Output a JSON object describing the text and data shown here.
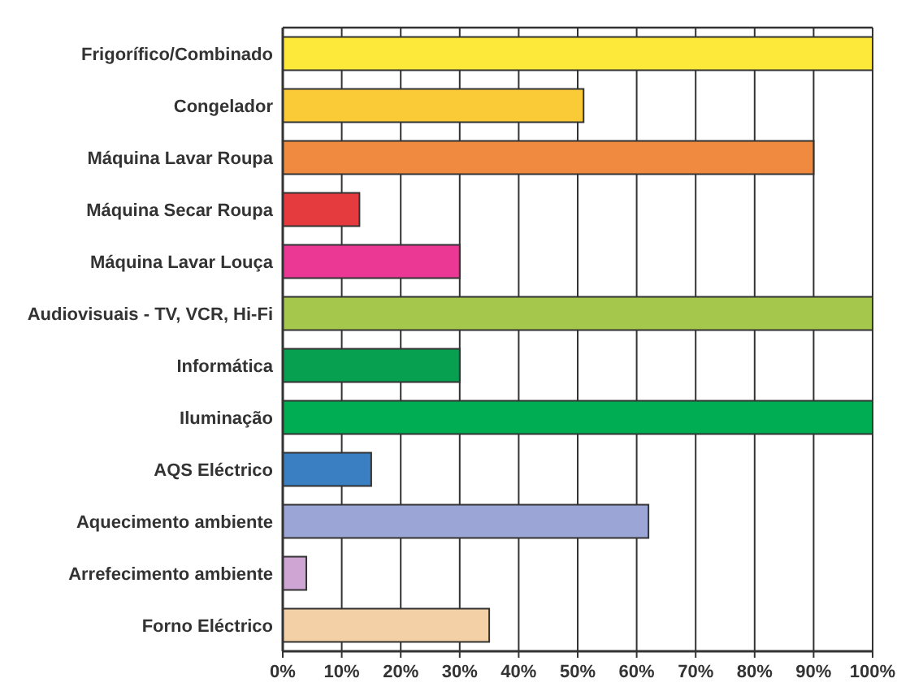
{
  "chart_data": {
    "type": "bar",
    "orientation": "horizontal",
    "categories": [
      "Frigorífico/Combinado",
      "Congelador",
      "Máquina Lavar Roupa",
      "Máquina Secar Roupa",
      "Máquina Lavar Louça",
      "Audiovisuais - TV, VCR, Hi-Fi",
      "Informática",
      "Iluminação",
      "AQS Eléctrico",
      "Aquecimento ambiente",
      "Arrefecimento ambiente",
      "Forno Eléctrico"
    ],
    "values": [
      100,
      51,
      90,
      13,
      30,
      100,
      30,
      100,
      15,
      62,
      4,
      35
    ],
    "colors": [
      "#fde93a",
      "#fbcb37",
      "#ef8a40",
      "#e63b3e",
      "#ea3894",
      "#a5c74b",
      "#06a050",
      "#00ad52",
      "#3a7fc2",
      "#9ca6d6",
      "#cfa6d3",
      "#f3d0a6"
    ],
    "xlim": [
      0,
      100
    ],
    "xticks": [
      {
        "value": 0,
        "label": "0%"
      },
      {
        "value": 10,
        "label": "10%"
      },
      {
        "value": 20,
        "label": "20%"
      },
      {
        "value": 30,
        "label": "30%"
      },
      {
        "value": 40,
        "label": "40%"
      },
      {
        "value": 50,
        "label": "50%"
      },
      {
        "value": 60,
        "label": "60%"
      },
      {
        "value": 70,
        "label": "70%"
      },
      {
        "value": 80,
        "label": "80%"
      },
      {
        "value": 90,
        "label": "90%"
      },
      {
        "value": 100,
        "label": "100%"
      }
    ],
    "grid": "x"
  }
}
